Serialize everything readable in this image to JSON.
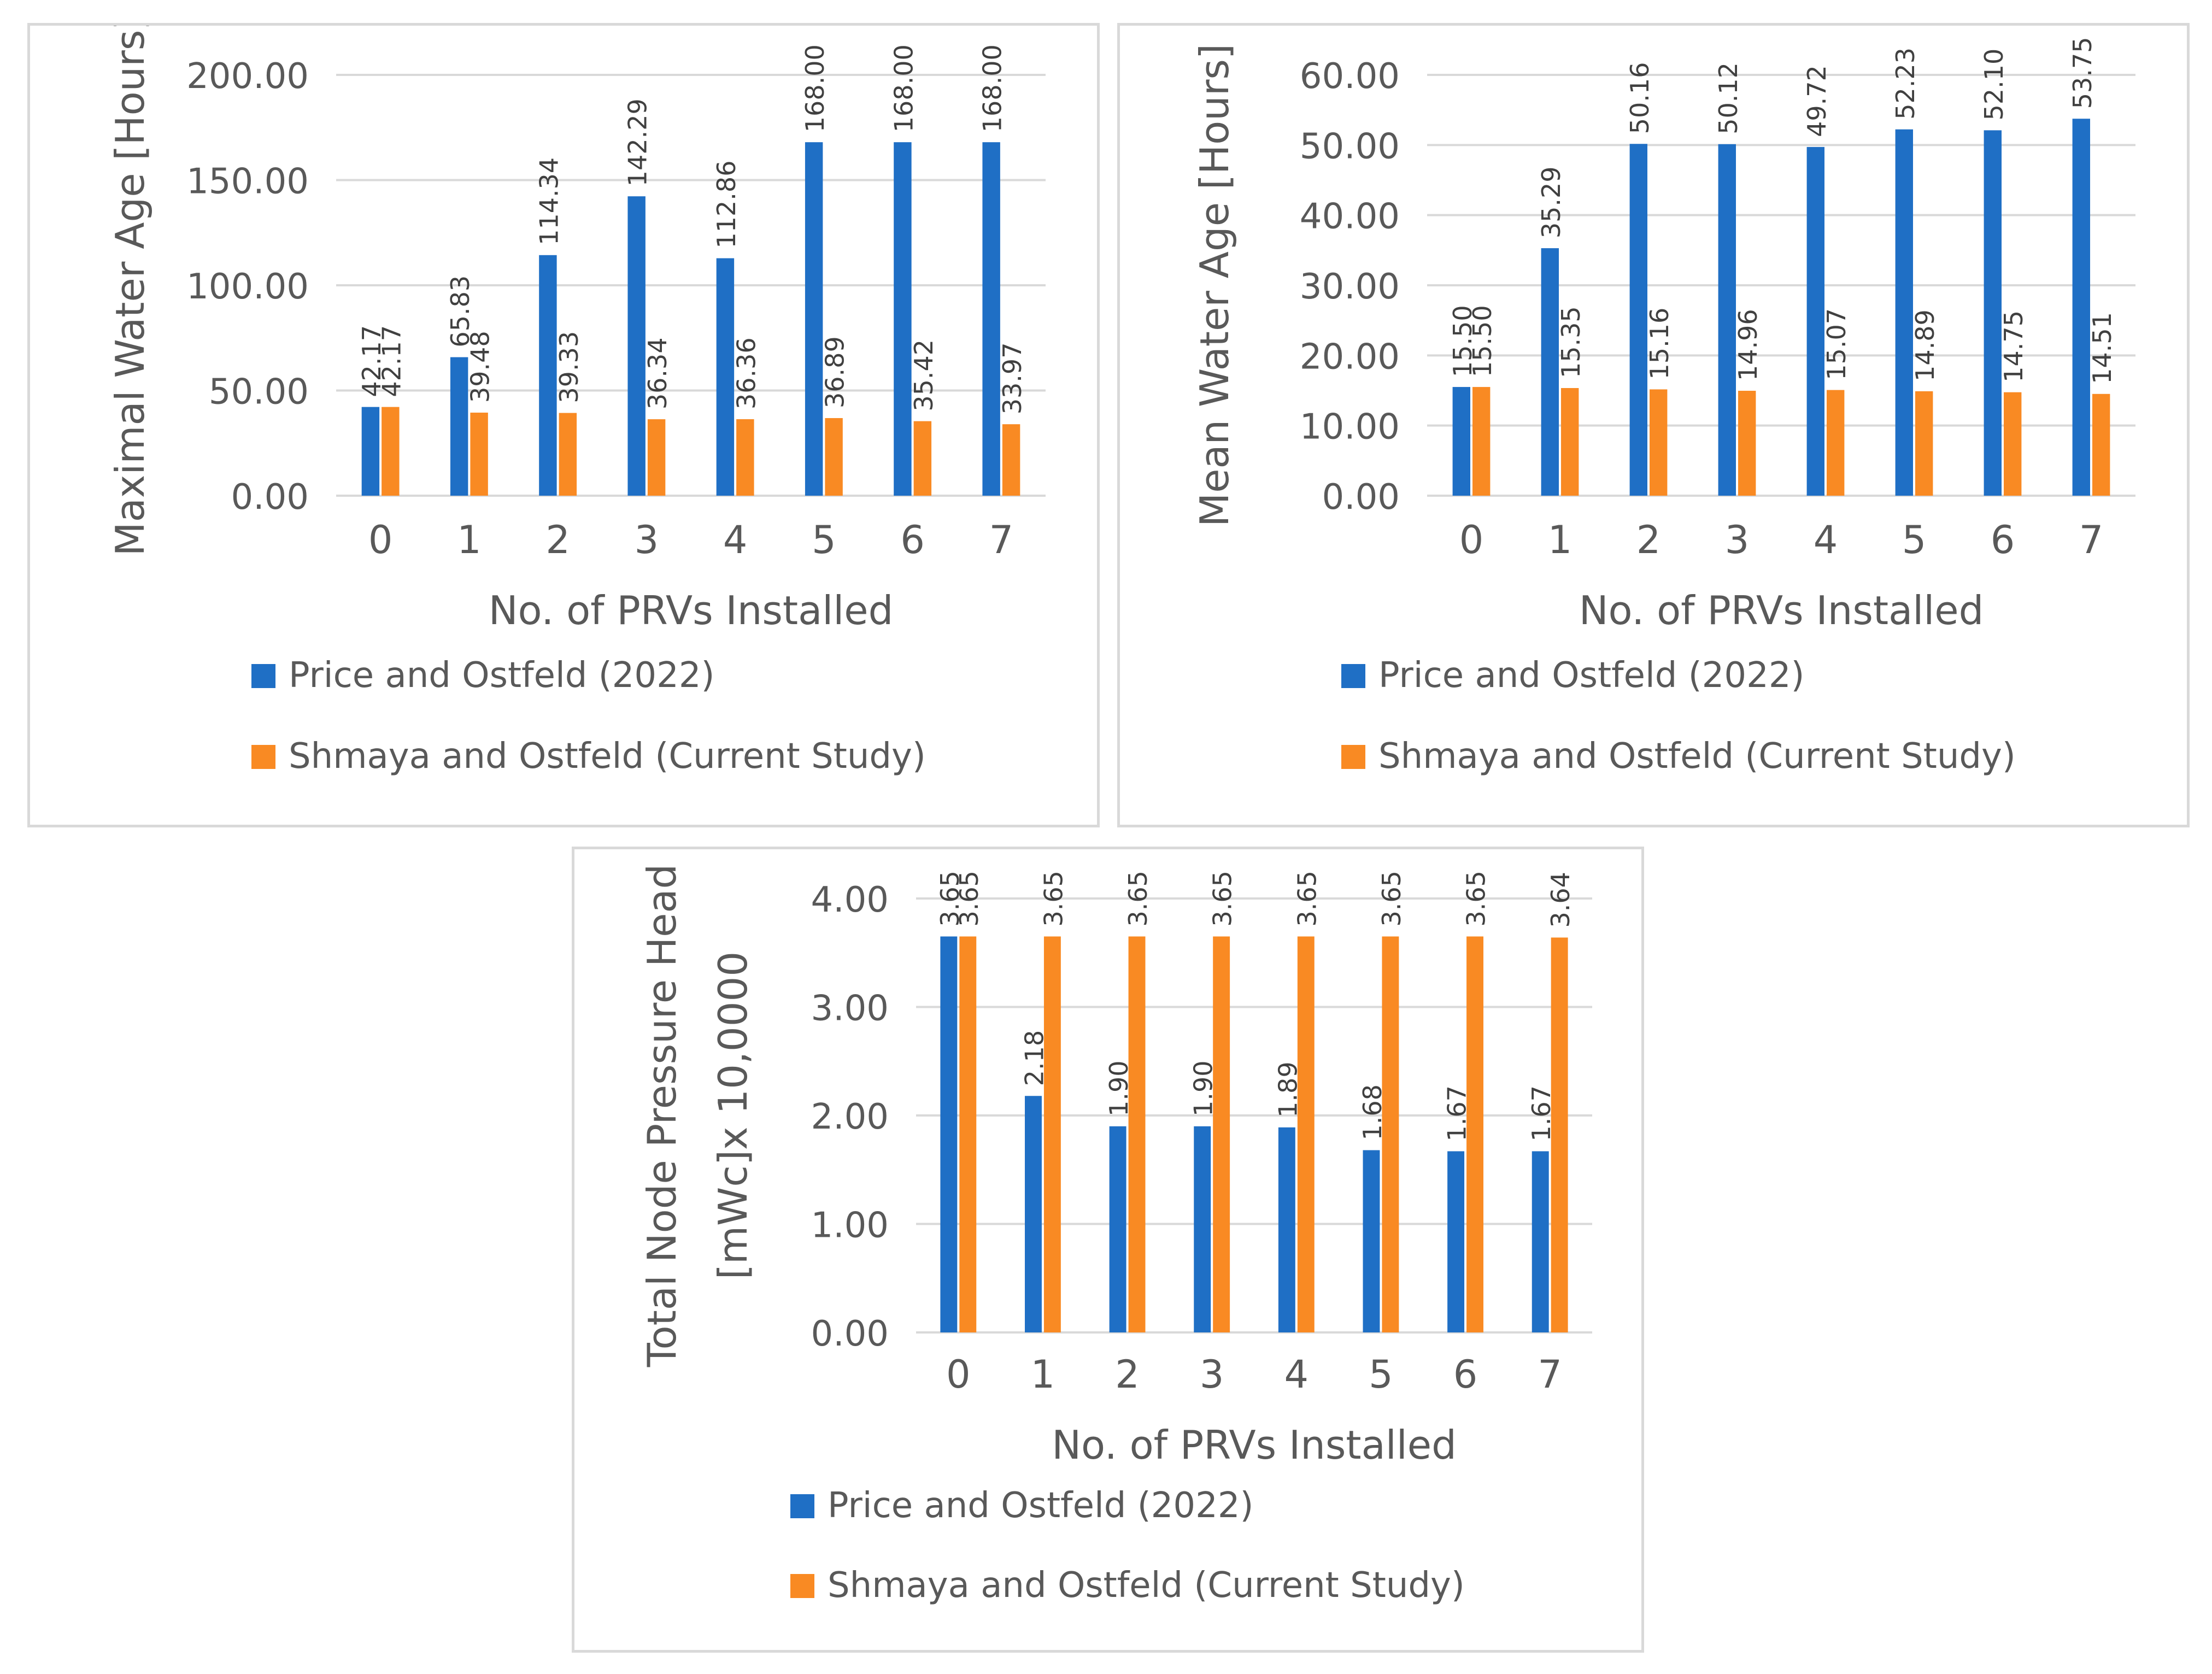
{
  "colors": {
    "price": "#1f6fc5",
    "shmaya": "#f98a23",
    "grid": "#d9d9d9",
    "text": "#595959",
    "label": "#404040"
  },
  "chart_data": [
    {
      "type": "bar",
      "title": "",
      "xlabel": "No. of PRVs Installed",
      "ylabel": "Maximal Water Age [Hours]",
      "categories": [
        "0",
        "1",
        "2",
        "3",
        "4",
        "5",
        "6",
        "7"
      ],
      "ylim": [
        0,
        200
      ],
      "yticks": [
        "0.00",
        "50.00",
        "100.00",
        "150.00",
        "200.00"
      ],
      "grid": true,
      "legend_position": "bottom",
      "series": [
        {
          "name": "Price and Ostfeld (2022)",
          "values": [
            42.17,
            65.83,
            114.34,
            142.29,
            112.86,
            168.0,
            168.0,
            168.0
          ],
          "labels": [
            "42.17",
            "65.83",
            "114.34",
            "142.29",
            "112.86",
            "168.00",
            "168.00",
            "168.00"
          ]
        },
        {
          "name": "Shmaya and Ostfeld (Current Study)",
          "values": [
            42.17,
            39.48,
            39.33,
            36.34,
            36.36,
            36.89,
            35.42,
            33.97
          ],
          "labels": [
            "42.17",
            "39.48",
            "39.33",
            "36.34",
            "36.36",
            "36.89",
            "35.42",
            "33.97"
          ]
        }
      ]
    },
    {
      "type": "bar",
      "title": "",
      "xlabel": "No. of PRVs Installed",
      "ylabel": "Mean Water Age [Hours]",
      "categories": [
        "0",
        "1",
        "2",
        "3",
        "4",
        "5",
        "6",
        "7"
      ],
      "ylim": [
        0,
        60
      ],
      "yticks": [
        "0.00",
        "10.00",
        "20.00",
        "30.00",
        "40.00",
        "50.00",
        "60.00"
      ],
      "grid": true,
      "legend_position": "bottom",
      "series": [
        {
          "name": "Price and Ostfeld (2022)",
          "values": [
            15.5,
            35.29,
            50.16,
            50.12,
            49.72,
            52.23,
            52.1,
            53.75
          ],
          "labels": [
            "15.50",
            "35.29",
            "50.16",
            "50.12",
            "49.72",
            "52.23",
            "52.10",
            "53.75"
          ]
        },
        {
          "name": "Shmaya and Ostfeld (Current Study)",
          "values": [
            15.5,
            15.35,
            15.16,
            14.96,
            15.07,
            14.89,
            14.75,
            14.51
          ],
          "labels": [
            "15.50",
            "15.35",
            "15.16",
            "14.96",
            "15.07",
            "14.89",
            "14.75",
            "14.51"
          ]
        }
      ]
    },
    {
      "type": "bar",
      "title": "",
      "xlabel": "No. of PRVs Installed",
      "ylabel": [
        "Total Node Pressure Head",
        "[mWc]x 10,0000"
      ],
      "categories": [
        "0",
        "1",
        "2",
        "3",
        "4",
        "5",
        "6",
        "7"
      ],
      "ylim": [
        0,
        4
      ],
      "yticks": [
        "0.00",
        "1.00",
        "2.00",
        "3.00",
        "4.00"
      ],
      "grid": true,
      "legend_position": "bottom",
      "series": [
        {
          "name": "Price and Ostfeld (2022)",
          "values": [
            3.65,
            2.18,
            1.9,
            1.9,
            1.89,
            1.68,
            1.67,
            1.67
          ],
          "labels": [
            "3.65",
            "2.18",
            "1.90",
            "1.90",
            "1.89",
            "1.68",
            "1.67",
            "1.67"
          ]
        },
        {
          "name": "Shmaya and Ostfeld (Current Study)",
          "values": [
            3.65,
            3.65,
            3.65,
            3.65,
            3.65,
            3.65,
            3.65,
            3.64
          ],
          "labels": [
            "3.65",
            "3.65",
            "3.65",
            "3.65",
            "3.65",
            "3.65",
            "3.65",
            "3.64"
          ]
        }
      ]
    }
  ]
}
